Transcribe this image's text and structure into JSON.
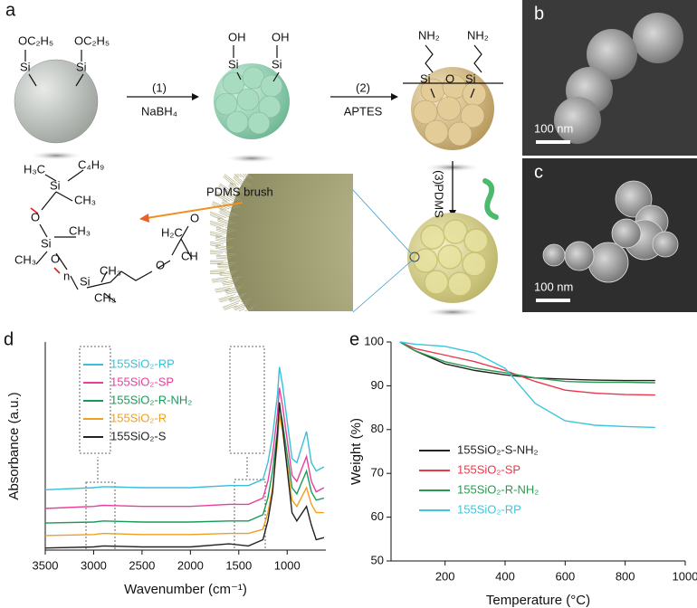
{
  "panels": {
    "a": "a",
    "b": "b",
    "c": "c"
  },
  "scheme": {
    "step1": "(1)",
    "reagent1": "NaBH₄",
    "step2": "(2)",
    "reagent2": "APTES",
    "step3": "(3)",
    "reagent3": "PDMS",
    "brush_label": "PDMS brush",
    "ethoxy": [
      "OC₂H₅",
      "OC₂H₅"
    ],
    "ethoxy_si": [
      "Si",
      "Si"
    ],
    "hydroxyl": [
      "OH",
      "OH"
    ],
    "hydroxyl_si": [
      "Si",
      "Si"
    ],
    "amine": [
      "NH₂",
      "NH₂"
    ],
    "amine_link": [
      "Si",
      "O",
      "Si"
    ],
    "pdms": [
      "H₃C",
      "Si",
      "C₄H₉",
      "CH₃",
      "O",
      "Si",
      "CH₃",
      "CH₃",
      "O",
      "n",
      "Si",
      "CH₃",
      "CH₃",
      "O",
      "H₂C",
      "O",
      "CH"
    ]
  },
  "micrographs": {
    "b": {
      "scale_bar": "100 nm"
    },
    "c": {
      "scale_bar": "100 nm"
    }
  },
  "chart_data": [
    {
      "type": "line",
      "panel_label": "d",
      "x_label": "Wavenumber (cm⁻¹)",
      "y_label": "Absorbance (a.u.)",
      "x": [
        3500,
        3000,
        2900,
        2500,
        2000,
        1600,
        1400,
        1250,
        1200,
        1150,
        1100,
        1080,
        1050,
        950,
        900,
        800,
        750,
        700,
        620
      ],
      "xlim": [
        3500,
        600
      ],
      "xticks": [
        3500,
        3000,
        2500,
        2000,
        1500,
        1000
      ],
      "ylim": [
        0,
        100
      ],
      "series": [
        {
          "name": "155SiO₂-RP",
          "color": "#3bbfd8",
          "values": [
            29,
            30,
            30.5,
            30,
            30,
            31,
            31,
            34,
            42,
            55,
            75,
            88,
            80,
            44,
            42,
            57,
            42,
            38,
            40
          ]
        },
        {
          "name": "155SiO₂-SP",
          "color": "#e8409a",
          "values": [
            20,
            21,
            21.5,
            21,
            21,
            22,
            22,
            25,
            33,
            46,
            66,
            78,
            70,
            36,
            33,
            45,
            33,
            28,
            30
          ]
        },
        {
          "name": "155SiO₂-R-NH₂",
          "color": "#1a9a5a",
          "values": [
            13,
            13.5,
            14,
            13.5,
            13.5,
            14,
            14,
            17,
            25,
            38,
            58,
            69,
            62,
            30,
            27,
            38,
            28,
            24,
            25
          ]
        },
        {
          "name": "155SiO₂-R",
          "color": "#f0a020",
          "values": [
            7,
            7.5,
            8,
            7.5,
            7.5,
            8,
            8,
            10,
            18,
            30,
            52,
            65,
            58,
            24,
            21,
            30,
            22,
            18,
            18
          ]
        },
        {
          "name": "155SiO₂-S",
          "color": "#222222",
          "values": [
            1,
            1.5,
            2,
            1.5,
            1.5,
            3,
            2,
            5,
            14,
            28,
            56,
            71,
            60,
            18,
            14,
            21,
            12,
            5,
            6
          ]
        }
      ]
    },
    {
      "type": "line",
      "panel_label": "e",
      "x_label": "Temperature (°C)",
      "y_label": "Weight (%)",
      "x": [
        50,
        100,
        200,
        300,
        400,
        500,
        600,
        700,
        800,
        900
      ],
      "xlim": [
        20,
        1000
      ],
      "xticks": [
        200,
        400,
        600,
        800,
        1000
      ],
      "ylim": [
        50,
        100
      ],
      "yticks": [
        50,
        60,
        70,
        80,
        90,
        100
      ],
      "series": [
        {
          "name": "155SiO₂-S-NH₂",
          "color": "#222222",
          "values": [
            100,
            98,
            95,
            93.5,
            92.5,
            91.8,
            91.5,
            91.3,
            91.2,
            91.2
          ]
        },
        {
          "name": "155SiO₂-SP",
          "color": "#e8384a",
          "values": [
            100,
            98.5,
            97,
            95.5,
            93.5,
            91,
            89,
            88.3,
            88,
            87.9
          ]
        },
        {
          "name": "155SiO₂-R-NH₂",
          "color": "#2a9a50",
          "values": [
            100,
            98,
            95.5,
            94,
            93,
            91.8,
            91,
            90.8,
            90.8,
            90.7
          ]
        },
        {
          "name": "155SiO₂-RP",
          "color": "#3ec5dc",
          "values": [
            100,
            99.5,
            99,
            97.5,
            94,
            86,
            82,
            81,
            80.7,
            80.5
          ]
        }
      ]
    }
  ]
}
